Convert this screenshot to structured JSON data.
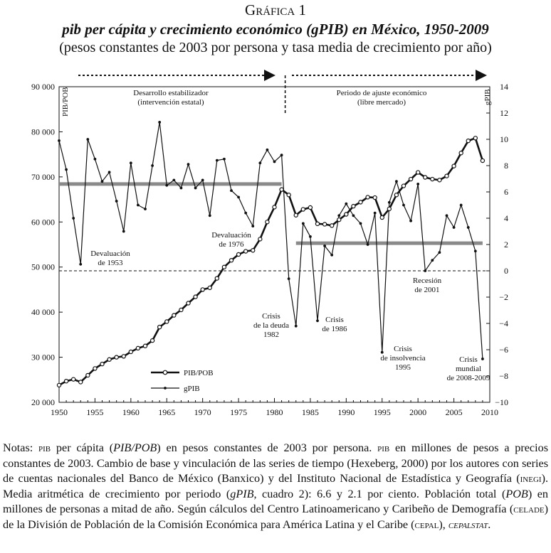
{
  "header": {
    "title": "Gráfica 1",
    "subtitle": "pib per cápita y crecimiento económico (gPIB) en México, 1950-2009",
    "units": "(pesos constantes de 2003 por persona y tasa media de crecimiento por año)"
  },
  "chart_data": {
    "type": "line",
    "x": [
      1950,
      1951,
      1952,
      1953,
      1954,
      1955,
      1956,
      1957,
      1958,
      1959,
      1960,
      1961,
      1962,
      1963,
      1964,
      1965,
      1966,
      1967,
      1968,
      1969,
      1970,
      1971,
      1972,
      1973,
      1974,
      1975,
      1976,
      1977,
      1978,
      1979,
      1980,
      1981,
      1982,
      1983,
      1984,
      1985,
      1986,
      1987,
      1988,
      1989,
      1990,
      1991,
      1992,
      1993,
      1994,
      1995,
      1996,
      1997,
      1998,
      1999,
      2000,
      2001,
      2002,
      2003,
      2004,
      2005,
      2006,
      2007,
      2008,
      2009
    ],
    "series": [
      {
        "name": "PIB/POB",
        "axis": "left",
        "values": [
          23800,
          24700,
          25100,
          24500,
          26000,
          27500,
          28500,
          29500,
          30000,
          30200,
          31200,
          32000,
          32500,
          33700,
          36700,
          37900,
          39300,
          40500,
          42000,
          43400,
          45000,
          45400,
          47500,
          50000,
          51500,
          52800,
          53500,
          53700,
          56200,
          60000,
          63300,
          67200,
          66000,
          61500,
          62800,
          63200,
          59600,
          59500,
          59200,
          60500,
          61700,
          63500,
          64400,
          65500,
          65400,
          61000,
          62900,
          66000,
          68000,
          69500,
          71000,
          69900,
          69500,
          69300,
          70200,
          72400,
          75300,
          78000,
          78600,
          73600
        ]
      },
      {
        "name": "gPIB",
        "axis": "right",
        "values": [
          9.9,
          7.7,
          4.0,
          0.5,
          10.0,
          8.5,
          6.8,
          7.5,
          5.3,
          3.0,
          8.2,
          5.0,
          4.7,
          8.0,
          11.3,
          6.5,
          6.9,
          6.3,
          8.1,
          6.3,
          6.9,
          4.2,
          8.4,
          8.5,
          6.1,
          5.6,
          4.4,
          3.4,
          8.2,
          9.2,
          8.3,
          8.8,
          -0.6,
          -4.2,
          3.6,
          2.6,
          -3.8,
          1.9,
          1.2,
          4.2,
          5.1,
          4.2,
          3.6,
          2.0,
          4.4,
          -6.2,
          5.2,
          6.8,
          5.0,
          3.8,
          6.6,
          0.0,
          0.8,
          1.4,
          4.2,
          3.3,
          5.0,
          3.3,
          1.5,
          -6.7
        ]
      }
    ],
    "period_means": [
      {
        "from": 1950,
        "to": 1981,
        "value": 6.6
      },
      {
        "from": 1983,
        "to": 2009,
        "value": 2.1
      }
    ],
    "y_left": {
      "label": "PIB/POB",
      "min": 20000,
      "max": 90000,
      "ticks": [
        "20 000",
        "30 000",
        "40 000",
        "50 000",
        "60 000",
        "70 000",
        "80 000",
        "90 000"
      ]
    },
    "y_right": {
      "label": "gPIB",
      "min": -10,
      "max": 14,
      "ticks": [
        "−10",
        "−8",
        "−6",
        "−4",
        "−2",
        "0",
        "2",
        "4",
        "6",
        "8",
        "10",
        "12",
        "14"
      ]
    },
    "x_axis": {
      "min": 1950,
      "max": 2010,
      "ticks": [
        "1950",
        "1955",
        "1960",
        "1965",
        "1970",
        "1975",
        "1980",
        "1985",
        "1990",
        "1995",
        "2000",
        "2005",
        "2010"
      ]
    },
    "periods": [
      {
        "line1": "Desarrollo estabilizador",
        "line2": "(intervención estatal)"
      },
      {
        "line1": "Periodo de ajuste económico",
        "line2": "(libre mercado)"
      }
    ],
    "annotations": {
      "devaluacion_1953": [
        "Devaluación",
        "de 1953"
      ],
      "devaluacion_1976": [
        "Devaluación",
        "de 1976"
      ],
      "crisis_deuda": [
        "Crisis",
        "de la deuda",
        "1982"
      ],
      "crisis_1986": [
        "Crisis",
        "de 1986"
      ],
      "recesion_2001": [
        "Recesión",
        "de 2001"
      ],
      "crisis_insolvencia": [
        "Crisis",
        "de insolvencia",
        "1995"
      ],
      "crisis_mundial": [
        "Crisis",
        "mundial",
        "de 2008-2009"
      ]
    },
    "legend": {
      "position": "bottom-right",
      "items": [
        "PIB/POB",
        "gPIB"
      ]
    }
  },
  "notes": {
    "p1": "Notas: ",
    "p2": "pib",
    "p3": " per cápita (",
    "p4": "PIB",
    "p5": "/",
    "p6": "POB",
    "p7": ") en pesos constantes de 2003 por persona. ",
    "p8": "pib",
    "p9": " en millones de pesos a precios constantes de 2003. Cambio de base y vinculación de las series de tiempo (Hexeberg, 2000) por los autores con series de cuentas nacionales del Banco de México (Banxico) y del Instituto Nacional de Estadística y Geografía (",
    "p10": "inegi",
    "p11": "). Media aritmética de crecimiento por periodo (",
    "p12": "gPIB",
    "p13": ", cuadro 2): 6.6 y 2.1 por ciento. Población total (",
    "p14": "POB",
    "p15": ") en millones de personas a mitad de año. Según cálculos del Centro Latinoamericano y Caribeño de Demografía (",
    "p16": "celade",
    "p17": ") de la División de Población de la Comisión Económica para América Latina y el Caribe (",
    "p18": "cepal",
    "p19": "), ",
    "p20": "cepalstat",
    "p21": "."
  }
}
